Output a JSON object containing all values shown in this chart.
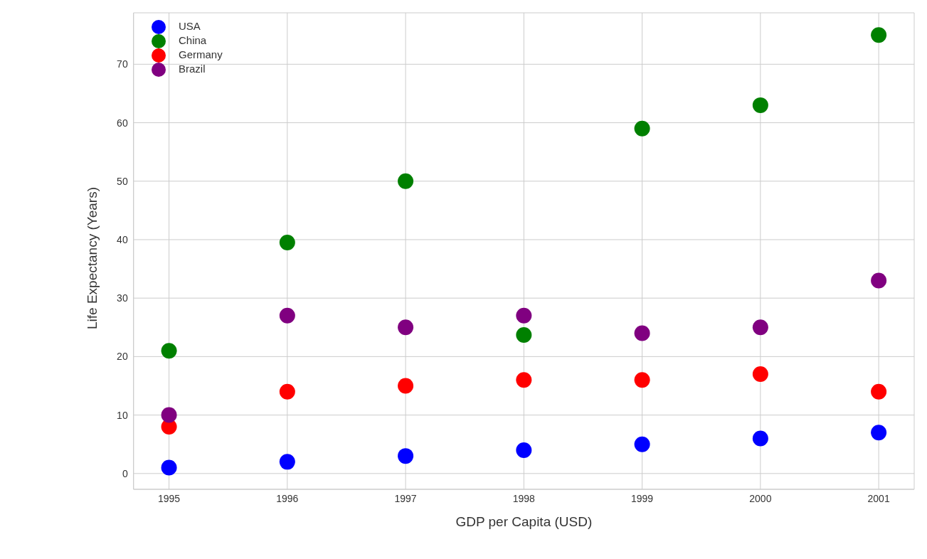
{
  "chart_data": {
    "type": "scatter",
    "xlabel": "GDP per Capita (USD)",
    "ylabel": "Life Expectancy (Years)",
    "x": [
      1995,
      1996,
      1997,
      1998,
      1999,
      2000,
      2001
    ],
    "series": [
      {
        "name": "USA",
        "color": "#0000ff",
        "values": [
          1,
          2,
          3,
          4,
          5,
          6,
          7
        ]
      },
      {
        "name": "China",
        "color": "#008000",
        "values": [
          21,
          39.5,
          50,
          23.7,
          59,
          63,
          75
        ]
      },
      {
        "name": "Germany",
        "color": "#ff0000",
        "values": [
          8,
          14,
          15,
          16,
          16,
          17,
          14
        ]
      },
      {
        "name": "Brazil",
        "color": "#800080",
        "values": [
          10,
          27,
          25,
          27,
          24,
          25,
          33
        ]
      }
    ],
    "xlim": [
      1994.7,
      2001.3
    ],
    "xticks": [
      1995,
      1996,
      1997,
      1998,
      1999,
      2000,
      2001
    ],
    "ylim": [
      -2.7,
      78.8
    ],
    "yticks": [
      0,
      10,
      20,
      30,
      40,
      50,
      60,
      70
    ],
    "grid": true,
    "legend": "top left",
    "marker": "circle"
  }
}
